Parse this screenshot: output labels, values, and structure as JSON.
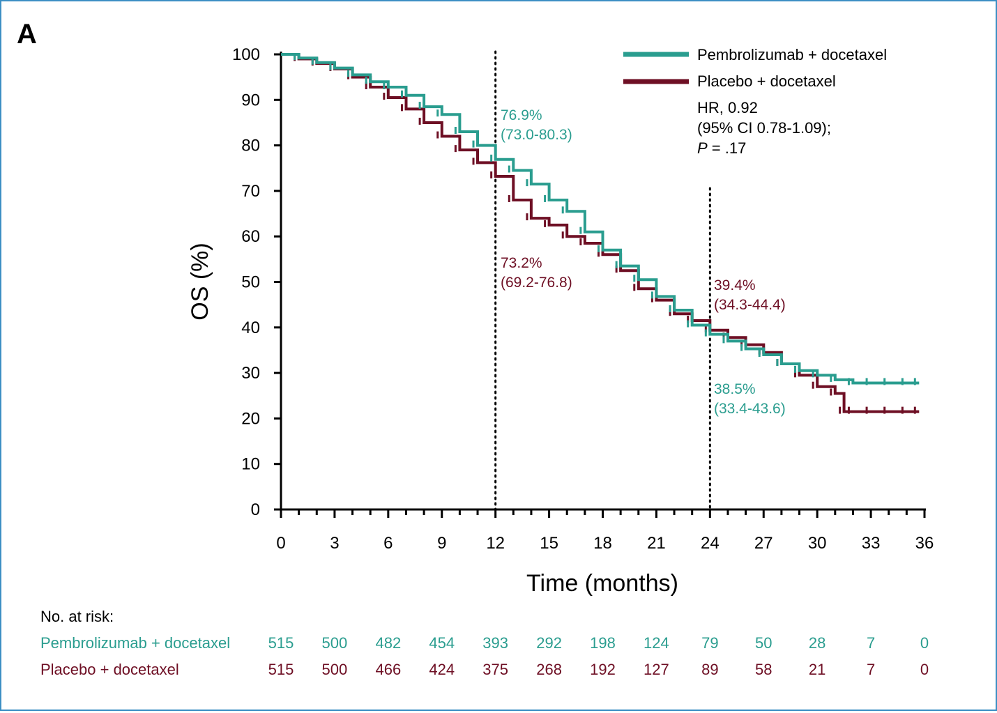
{
  "panel_label": "A",
  "colors": {
    "pembro": "#2a9d8f",
    "placebo": "#6e0f24",
    "text": "#000000",
    "frame": "#3c8fc4"
  },
  "chart_data": {
    "type": "line",
    "xlabel": "Time (months)",
    "ylabel": "OS (%)",
    "xlim": [
      0,
      36
    ],
    "ylim": [
      0,
      100
    ],
    "xticks": [
      0,
      3,
      6,
      9,
      12,
      15,
      18,
      21,
      24,
      27,
      30,
      33,
      36
    ],
    "yticks": [
      0,
      10,
      20,
      30,
      40,
      50,
      60,
      70,
      80,
      90,
      100
    ],
    "grid": false,
    "legend_position": "top-right",
    "reference_lines_x": [
      12,
      24
    ],
    "series": [
      {
        "name": "Pembrolizumab + docetaxel",
        "color_key": "pembro",
        "x": [
          0,
          1,
          2,
          3,
          4,
          5,
          6,
          7,
          8,
          9,
          10,
          11,
          12,
          13,
          14,
          15,
          16,
          17,
          18,
          19,
          20,
          21,
          22,
          23,
          24,
          25,
          26,
          27,
          28,
          29,
          30,
          31,
          32,
          33,
          34,
          35,
          35.7
        ],
        "y": [
          100,
          99.2,
          98.2,
          97,
          95.5,
          94,
          92.8,
          91,
          88.5,
          86.8,
          83,
          80,
          76.9,
          74.5,
          71.5,
          68,
          65.5,
          61,
          57,
          53.5,
          50.5,
          46.8,
          43.8,
          40.5,
          38.5,
          37,
          35.3,
          34,
          32,
          30.5,
          29.5,
          28.5,
          27.8,
          27.8,
          27.8,
          27.8,
          27.8
        ]
      },
      {
        "name": "Placebo + docetaxel",
        "color_key": "placebo",
        "x": [
          0,
          1,
          2,
          3,
          4,
          5,
          6,
          7,
          8,
          9,
          10,
          11,
          12,
          13,
          14,
          15,
          16,
          17,
          18,
          19,
          20,
          21,
          22,
          23,
          24,
          25,
          26,
          27,
          28,
          29,
          30,
          31,
          31.5,
          32,
          33,
          34,
          35,
          35.7
        ],
        "y": [
          100,
          99,
          98,
          96.8,
          95,
          92.8,
          90.5,
          88,
          85,
          82,
          79,
          76.2,
          73.2,
          68,
          64,
          62.5,
          60,
          58.5,
          56,
          52.5,
          48.5,
          46,
          43,
          41.5,
          39.4,
          37.8,
          36.2,
          34.5,
          32,
          29.5,
          27,
          25.5,
          21.5,
          21.5,
          21.5,
          21.5,
          21.5,
          21.5
        ]
      }
    ],
    "annotations": [
      {
        "text": "76.9%",
        "series": "pembro"
      },
      {
        "text": "(73.0-80.3)",
        "series": "pembro"
      },
      {
        "text": "73.2%",
        "series": "placebo"
      },
      {
        "text": "(69.2-76.8)",
        "series": "placebo"
      },
      {
        "text": "39.4%",
        "series": "placebo"
      },
      {
        "text": "(34.3-44.4)",
        "series": "placebo"
      },
      {
        "text": "38.5%",
        "series": "pembro"
      },
      {
        "text": "(33.4-43.6)",
        "series": "pembro"
      }
    ],
    "hr_text": {
      "line1": "HR, 0.92",
      "line2": "(95% CI 0.78-1.09);",
      "line3_italic": "P",
      "line3_rest": " = .17"
    }
  },
  "risk_table": {
    "header": "No. at risk:",
    "rows": [
      {
        "label": "Pembrolizumab + docetaxel",
        "color_key": "pembro",
        "values": [
          "515",
          "500",
          "482",
          "454",
          "393",
          "292",
          "198",
          "124",
          "79",
          "50",
          "28",
          "7",
          "0"
        ]
      },
      {
        "label": "Placebo + docetaxel",
        "color_key": "placebo",
        "values": [
          "515",
          "500",
          "466",
          "424",
          "375",
          "268",
          "192",
          "127",
          "89",
          "58",
          "21",
          "7",
          "0"
        ]
      }
    ]
  }
}
